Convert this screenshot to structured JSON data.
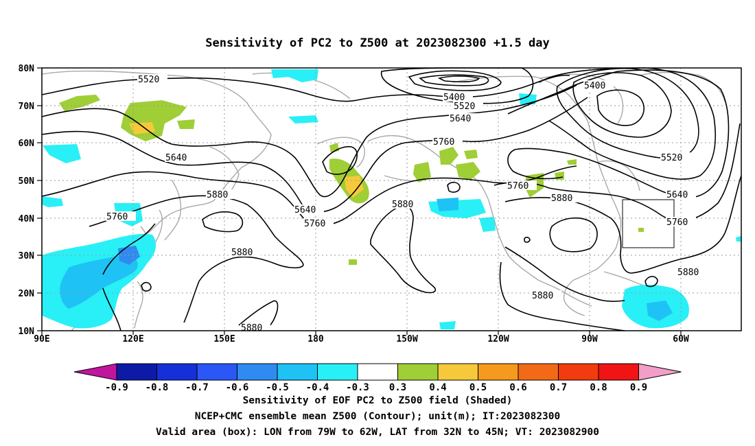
{
  "title": "Sensitivity of PC2 to Z500 at 2023082300 +1.5 day",
  "lat_labels": [
    "80N",
    "70N",
    "60N",
    "50N",
    "40N",
    "30N",
    "20N",
    "10N"
  ],
  "lon_labels": [
    "90E",
    "120E",
    "150E",
    "180",
    "150W",
    "120W",
    "90W",
    "60W"
  ],
  "contour_labels": [
    {
      "name": "contour-label-5520-west",
      "text": "5520"
    },
    {
      "name": "contour-label-5400-north",
      "text": "5400"
    },
    {
      "name": "contour-label-5400-east",
      "text": "5400"
    },
    {
      "name": "contour-label-5520-north",
      "text": "5520"
    },
    {
      "name": "contour-label-5640-north",
      "text": "5640"
    },
    {
      "name": "contour-label-5760-north",
      "text": "5760"
    },
    {
      "name": "contour-label-5640-west",
      "text": "5640"
    },
    {
      "name": "contour-label-5880-west",
      "text": "5880"
    },
    {
      "name": "contour-label-5760-west",
      "text": "5760"
    },
    {
      "name": "contour-label-5640-mid",
      "text": "5640"
    },
    {
      "name": "contour-label-5760-mid",
      "text": "5760"
    },
    {
      "name": "contour-label-5880-mid",
      "text": "5880"
    },
    {
      "name": "contour-label-5880-subtrop",
      "text": "5880"
    },
    {
      "name": "contour-label-5880-south",
      "text": "5880"
    },
    {
      "name": "contour-label-5760-east",
      "text": "5760"
    },
    {
      "name": "contour-label-5880-east",
      "text": "5880"
    },
    {
      "name": "contour-label-5520-east",
      "text": "5520"
    },
    {
      "name": "contour-label-5640-east",
      "text": "5640"
    },
    {
      "name": "contour-label-5760-east2",
      "text": "5760"
    },
    {
      "name": "contour-label-5880-east2",
      "text": "5880"
    },
    {
      "name": "contour-label-5880-gulf",
      "text": "5880"
    }
  ],
  "colorbar": {
    "labels": [
      "-0.9",
      "-0.8",
      "-0.7",
      "-0.6",
      "-0.5",
      "-0.4",
      "-0.3",
      "0.3",
      "0.4",
      "0.5",
      "0.6",
      "0.7",
      "0.8",
      "0.9"
    ],
    "colors": [
      "#c0159e",
      "#0d1aa6",
      "#1530d8",
      "#2a57f5",
      "#2f8bf0",
      "#1ec2f4",
      "#28f0f6",
      "#ffffff",
      "#9fce36",
      "#f5c93b",
      "#f59a1e",
      "#f26a16",
      "#f23b0e",
      "#f01414",
      "#f29ec8"
    ]
  },
  "captions": [
    "Sensitivity of EOF PC2 to Z500 field (Shaded)",
    "NCEP+CMC ensemble mean Z500 (Contour); unit(m); IT:2023082300",
    "Valid area (box): LON from 79W to 62W, LAT from 32N to 45N; VT: 2023082900"
  ]
}
